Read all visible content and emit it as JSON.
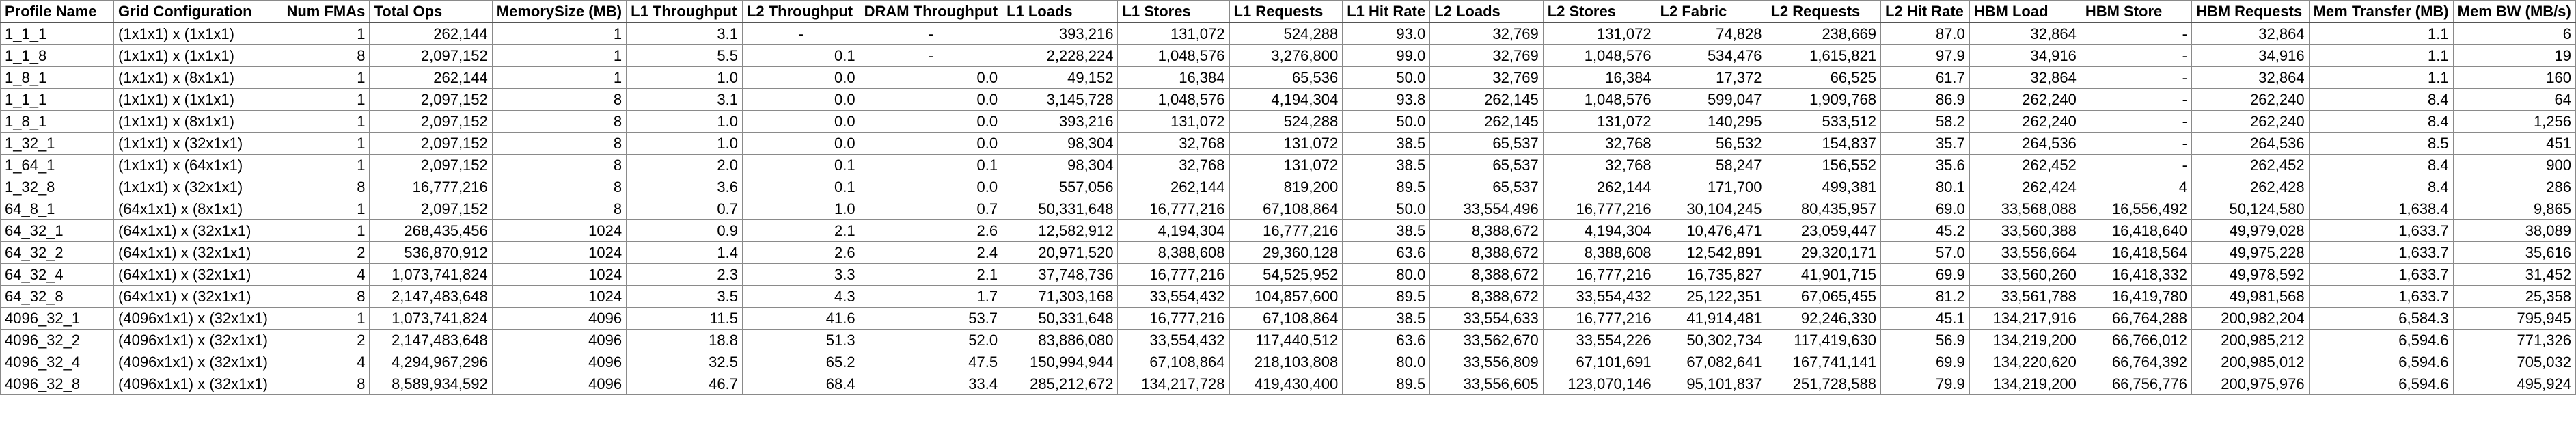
{
  "columns": [
    "Profile Name",
    "Grid Configuration",
    "Num FMAs",
    "Total Ops",
    "MemorySize (MB)",
    "L1 Throughput",
    "L2 Throughput",
    "DRAM Throughput",
    "L1 Loads",
    "L1 Stores",
    "L1 Requests",
    "L1 Hit Rate",
    "L2 Loads",
    "L2 Stores",
    "L2 Fabric",
    "L2 Requests",
    "L2 Hit Rate",
    "HBM Load",
    "HBM Store",
    "HBM Requests",
    "Mem Transfer (MB)",
    "Mem BW (MB/s)"
  ],
  "rows": [
    [
      "1_1_1",
      "(1x1x1) x (1x1x1)",
      "1",
      "262,144",
      "1",
      "3.1",
      "-",
      "-",
      "393,216",
      "131,072",
      "524,288",
      "93.0",
      "32,769",
      "131,072",
      "74,828",
      "238,669",
      "87.0",
      "32,864",
      "-",
      "32,864",
      "1.1",
      "6"
    ],
    [
      "1_1_8",
      "(1x1x1) x (1x1x1)",
      "8",
      "2,097,152",
      "1",
      "5.5",
      "0.1",
      "-",
      "2,228,224",
      "1,048,576",
      "3,276,800",
      "99.0",
      "32,769",
      "1,048,576",
      "534,476",
      "1,615,821",
      "97.9",
      "34,916",
      "-",
      "34,916",
      "1.1",
      "19"
    ],
    [
      "1_8_1",
      "(1x1x1) x (8x1x1)",
      "1",
      "262,144",
      "1",
      "1.0",
      "0.0",
      "0.0",
      "49,152",
      "16,384",
      "65,536",
      "50.0",
      "32,769",
      "16,384",
      "17,372",
      "66,525",
      "61.7",
      "32,864",
      "-",
      "32,864",
      "1.1",
      "160"
    ],
    [
      "1_1_1",
      "(1x1x1) x (1x1x1)",
      "1",
      "2,097,152",
      "8",
      "3.1",
      "0.0",
      "0.0",
      "3,145,728",
      "1,048,576",
      "4,194,304",
      "93.8",
      "262,145",
      "1,048,576",
      "599,047",
      "1,909,768",
      "86.9",
      "262,240",
      "-",
      "262,240",
      "8.4",
      "64"
    ],
    [
      "1_8_1",
      "(1x1x1) x (8x1x1)",
      "1",
      "2,097,152",
      "8",
      "1.0",
      "0.0",
      "0.0",
      "393,216",
      "131,072",
      "524,288",
      "50.0",
      "262,145",
      "131,072",
      "140,295",
      "533,512",
      "58.2",
      "262,240",
      "-",
      "262,240",
      "8.4",
      "1,256"
    ],
    [
      "1_32_1",
      "(1x1x1) x (32x1x1)",
      "1",
      "2,097,152",
      "8",
      "1.0",
      "0.0",
      "0.0",
      "98,304",
      "32,768",
      "131,072",
      "38.5",
      "65,537",
      "32,768",
      "56,532",
      "154,837",
      "35.7",
      "264,536",
      "-",
      "264,536",
      "8.5",
      "451"
    ],
    [
      "1_64_1",
      "(1x1x1) x (64x1x1)",
      "1",
      "2,097,152",
      "8",
      "2.0",
      "0.1",
      "0.1",
      "98,304",
      "32,768",
      "131,072",
      "38.5",
      "65,537",
      "32,768",
      "58,247",
      "156,552",
      "35.6",
      "262,452",
      "-",
      "262,452",
      "8.4",
      "900"
    ],
    [
      "1_32_8",
      "(1x1x1) x (32x1x1)",
      "8",
      "16,777,216",
      "8",
      "3.6",
      "0.1",
      "0.0",
      "557,056",
      "262,144",
      "819,200",
      "89.5",
      "65,537",
      "262,144",
      "171,700",
      "499,381",
      "80.1",
      "262,424",
      "4",
      "262,428",
      "8.4",
      "286"
    ],
    [
      "64_8_1",
      "(64x1x1) x (8x1x1)",
      "1",
      "2,097,152",
      "8",
      "0.7",
      "1.0",
      "0.7",
      "50,331,648",
      "16,777,216",
      "67,108,864",
      "50.0",
      "33,554,496",
      "16,777,216",
      "30,104,245",
      "80,435,957",
      "69.0",
      "33,568,088",
      "16,556,492",
      "50,124,580",
      "1,638.4",
      "9,865"
    ],
    [
      "64_32_1",
      "(64x1x1) x (32x1x1)",
      "1",
      "268,435,456",
      "1024",
      "0.9",
      "2.1",
      "2.6",
      "12,582,912",
      "4,194,304",
      "16,777,216",
      "38.5",
      "8,388,672",
      "4,194,304",
      "10,476,471",
      "23,059,447",
      "45.2",
      "33,560,388",
      "16,418,640",
      "49,979,028",
      "1,633.7",
      "38,089"
    ],
    [
      "64_32_2",
      "(64x1x1) x (32x1x1)",
      "2",
      "536,870,912",
      "1024",
      "1.4",
      "2.6",
      "2.4",
      "20,971,520",
      "8,388,608",
      "29,360,128",
      "63.6",
      "8,388,672",
      "8,388,608",
      "12,542,891",
      "29,320,171",
      "57.0",
      "33,556,664",
      "16,418,564",
      "49,975,228",
      "1,633.7",
      "35,616"
    ],
    [
      "64_32_4",
      "(64x1x1) x (32x1x1)",
      "4",
      "1,073,741,824",
      "1024",
      "2.3",
      "3.3",
      "2.1",
      "37,748,736",
      "16,777,216",
      "54,525,952",
      "80.0",
      "8,388,672",
      "16,777,216",
      "16,735,827",
      "41,901,715",
      "69.9",
      "33,560,260",
      "16,418,332",
      "49,978,592",
      "1,633.7",
      "31,452"
    ],
    [
      "64_32_8",
      "(64x1x1) x (32x1x1)",
      "8",
      "2,147,483,648",
      "1024",
      "3.5",
      "4.3",
      "1.7",
      "71,303,168",
      "33,554,432",
      "104,857,600",
      "89.5",
      "8,388,672",
      "33,554,432",
      "25,122,351",
      "67,065,455",
      "81.2",
      "33,561,788",
      "16,419,780",
      "49,981,568",
      "1,633.7",
      "25,358"
    ],
    [
      "4096_32_1",
      "(4096x1x1) x (32x1x1)",
      "1",
      "1,073,741,824",
      "4096",
      "11.5",
      "41.6",
      "53.7",
      "50,331,648",
      "16,777,216",
      "67,108,864",
      "38.5",
      "33,554,633",
      "16,777,216",
      "41,914,481",
      "92,246,330",
      "45.1",
      "134,217,916",
      "66,764,288",
      "200,982,204",
      "6,584.3",
      "795,945"
    ],
    [
      "4096_32_2",
      "(4096x1x1) x (32x1x1)",
      "2",
      "2,147,483,648",
      "4096",
      "18.8",
      "51.3",
      "52.0",
      "83,886,080",
      "33,554,432",
      "117,440,512",
      "63.6",
      "33,562,670",
      "33,554,226",
      "50,302,734",
      "117,419,630",
      "56.9",
      "134,219,200",
      "66,766,012",
      "200,985,212",
      "6,594.6",
      "771,326"
    ],
    [
      "4096_32_4",
      "(4096x1x1) x (32x1x1)",
      "4",
      "4,294,967,296",
      "4096",
      "32.5",
      "65.2",
      "47.5",
      "150,994,944",
      "67,108,864",
      "218,103,808",
      "80.0",
      "33,556,809",
      "67,101,691",
      "67,082,641",
      "167,741,141",
      "69.9",
      "134,220,620",
      "66,764,392",
      "200,985,012",
      "6,594.6",
      "705,032"
    ],
    [
      "4096_32_8",
      "(4096x1x1) x (32x1x1)",
      "8",
      "8,589,934,592",
      "4096",
      "46.7",
      "68.4",
      "33.4",
      "285,212,672",
      "134,217,728",
      "419,430,400",
      "89.5",
      "33,556,605",
      "123,070,146",
      "95,101,837",
      "251,728,588",
      "79.9",
      "134,219,200",
      "66,756,776",
      "200,975,976",
      "6,594.6",
      "495,924"
    ]
  ]
}
